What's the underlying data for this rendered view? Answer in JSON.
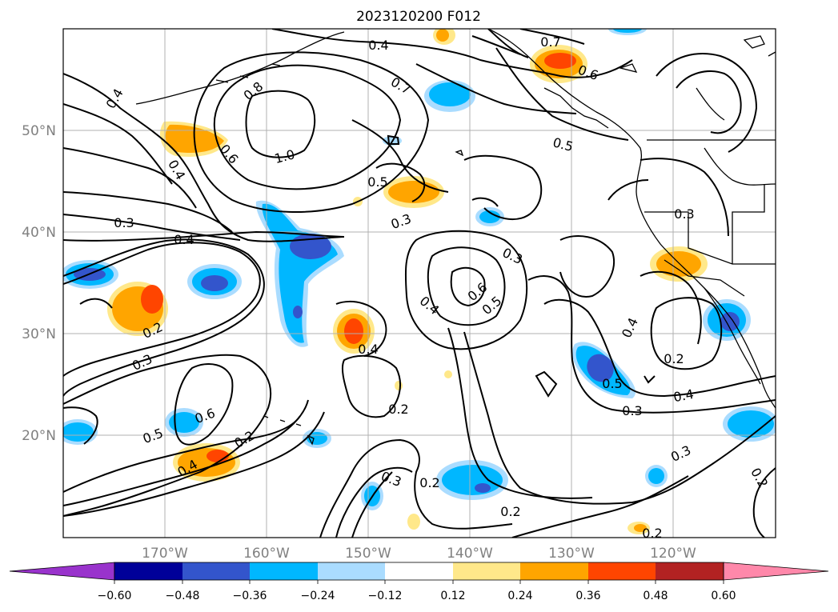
{
  "title": "2023120200 F012",
  "lat_labels": [
    "50°N",
    "40°N",
    "30°N",
    "20°N"
  ],
  "lon_labels": [
    "170°W",
    "160°W",
    "150°W",
    "140°W",
    "130°W",
    "120°W"
  ],
  "colorbar": {
    "tick_labels": [
      "−0.60",
      "−0.48",
      "−0.36",
      "−0.24",
      "−0.12",
      "0.12",
      "0.24",
      "0.36",
      "0.48",
      "0.60"
    ],
    "colors": [
      "#9933cc",
      "#000099",
      "#3355cc",
      "#00b7ff",
      "#aadcff",
      "#ffffff",
      "#ffe88a",
      "#ffa500",
      "#ff4500",
      "#b22222",
      "#ff88aa"
    ]
  },
  "contour_labels": [
    {
      "text": "0.4",
      "key": "c1"
    },
    {
      "text": "0.7",
      "key": "c2"
    },
    {
      "text": "0.6",
      "key": "c3"
    },
    {
      "text": "0.8",
      "key": "c4"
    },
    {
      "text": "0.7",
      "key": "c5"
    },
    {
      "text": "0.4",
      "key": "c6"
    },
    {
      "text": "1.0",
      "key": "c7"
    },
    {
      "text": "0.5",
      "key": "c8"
    },
    {
      "text": "0.6",
      "key": "c9"
    },
    {
      "text": "0.4",
      "key": "c10"
    },
    {
      "text": "0.5",
      "key": "c11"
    },
    {
      "text": "0.3",
      "key": "c12"
    },
    {
      "text": "0.3",
      "key": "c13"
    },
    {
      "text": "0.4",
      "key": "c14"
    },
    {
      "text": "0.3",
      "key": "c15"
    },
    {
      "text": "0.3",
      "key": "c16"
    },
    {
      "text": "0.6",
      "key": "c17"
    },
    {
      "text": "0.5",
      "key": "c18"
    },
    {
      "text": "0.4",
      "key": "c19"
    },
    {
      "text": "0.2",
      "key": "c20"
    },
    {
      "text": "0.3",
      "key": "c21"
    },
    {
      "text": "0.4",
      "key": "c22"
    },
    {
      "text": "0.4",
      "key": "c23"
    },
    {
      "text": "0.2",
      "key": "c24"
    },
    {
      "text": "0.5",
      "key": "c25"
    },
    {
      "text": "0.4",
      "key": "c26"
    },
    {
      "text": "0.6",
      "key": "c27"
    },
    {
      "text": "0.5",
      "key": "c28"
    },
    {
      "text": "0.2",
      "key": "c29"
    },
    {
      "text": "0.4",
      "key": "c30"
    },
    {
      "text": "0.2",
      "key": "c31"
    },
    {
      "text": "0.3",
      "key": "c32"
    },
    {
      "text": "0.3",
      "key": "c33"
    },
    {
      "text": "0.2",
      "key": "c34"
    },
    {
      "text": "0.3",
      "key": "c35"
    },
    {
      "text": "0.2",
      "key": "c36"
    },
    {
      "text": "0.2",
      "key": "c37"
    },
    {
      "text": "0.2",
      "key": "c38"
    }
  ]
}
